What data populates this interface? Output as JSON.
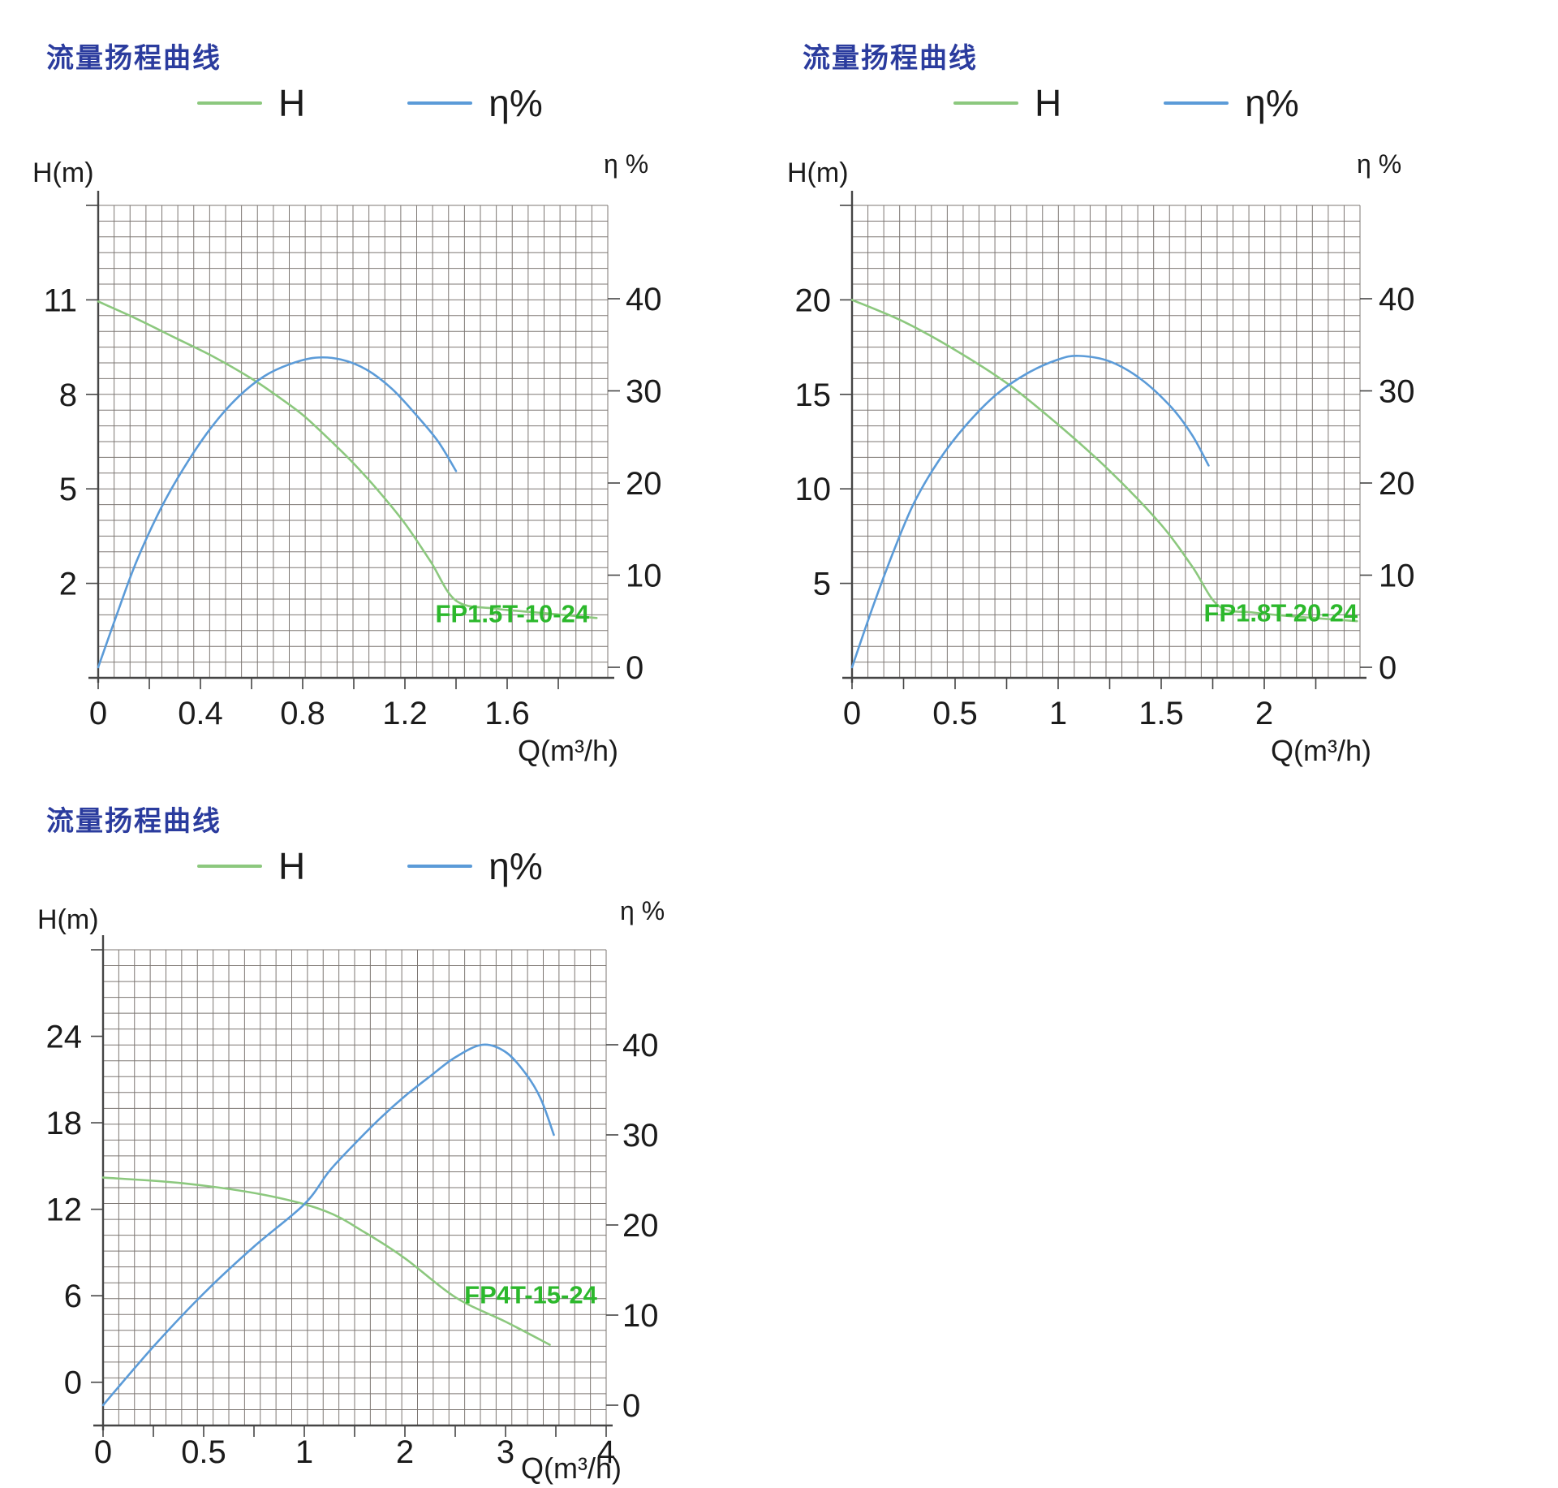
{
  "colors": {
    "title": "#2B3C9E",
    "grid": "#6F6964",
    "axis": "#454545",
    "text": "#1B1B1B",
    "h_curve": "#8CC87E",
    "eta_curve": "#5B9BD8",
    "model_label": "#2CB82C"
  },
  "charts": [
    {
      "title": "流量扬程曲线",
      "legend": {
        "h_label": "H",
        "eta_label": "η%"
      },
      "axes": {
        "left_title": "H(m)",
        "right_title": "η %",
        "x_title": "Q(m³/h)"
      },
      "model": "FP1.5T-10-24",
      "chart_data": {
        "type": "line",
        "title": "流量扬程曲线",
        "grid": "on",
        "legend_position": "top",
        "x_axis": {
          "label": "Q(m³/h)",
          "ticks": [
            0,
            0.4,
            0.8,
            1.2,
            1.6
          ],
          "tick_labels": [
            "0",
            "0.4",
            "0.8",
            "1.2",
            "1.6"
          ],
          "range": [
            0,
            2.0
          ],
          "scale": "linear"
        },
        "y_left": {
          "label": "H(m)",
          "ticks": [
            11,
            8,
            5,
            2
          ],
          "range_at_grid": [
            -1,
            14
          ]
        },
        "y_right": {
          "label": "η %",
          "ticks": [
            40,
            30,
            20,
            10,
            0
          ],
          "range_at_grid": [
            0,
            50
          ]
        },
        "series": [
          {
            "name": "H",
            "axis": "left",
            "color": "#8CC87E",
            "points": [
              [
                0,
                10.95
              ],
              [
                0.15,
                10.4
              ],
              [
                0.3,
                9.8
              ],
              [
                0.45,
                9.2
              ],
              [
                0.6,
                8.5
              ],
              [
                0.7,
                7.95
              ],
              [
                0.8,
                7.35
              ],
              [
                0.9,
                6.6
              ],
              [
                1.0,
                5.8
              ],
              [
                1.1,
                4.9
              ],
              [
                1.2,
                3.9
              ],
              [
                1.3,
                2.7
              ],
              [
                1.4,
                1.45
              ],
              [
                1.55,
                1.2
              ],
              [
                1.75,
                1.05
              ],
              [
                1.95,
                0.9
              ]
            ]
          },
          {
            "name": "η%",
            "axis": "right",
            "color": "#5B9BD8",
            "points": [
              [
                0,
                0
              ],
              [
                0.07,
                5.5
              ],
              [
                0.15,
                11.5
              ],
              [
                0.25,
                17.5
              ],
              [
                0.35,
                22.3
              ],
              [
                0.45,
                26.3
              ],
              [
                0.55,
                29.4
              ],
              [
                0.65,
                31.6
              ],
              [
                0.75,
                32.9
              ],
              [
                0.85,
                33.6
              ],
              [
                0.95,
                33.4
              ],
              [
                1.05,
                32.3
              ],
              [
                1.15,
                30.2
              ],
              [
                1.25,
                27.2
              ],
              [
                1.33,
                24.5
              ],
              [
                1.4,
                21.3
              ]
            ]
          }
        ],
        "annotation": {
          "text": "FP1.5T-10-24",
          "color": "#2CB82C",
          "x": 1.62,
          "h": 1.05
        }
      }
    },
    {
      "title": "流量扬程曲线",
      "legend": {
        "h_label": "H",
        "eta_label": "η%"
      },
      "axes": {
        "left_title": "H(m)",
        "right_title": "η %",
        "x_title": "Q(m³/h)"
      },
      "model": "FP1.8T-20-24",
      "chart_data": {
        "type": "line",
        "title": "流量扬程曲线",
        "grid": "on",
        "legend_position": "top",
        "x_axis": {
          "label": "Q(m³/h)",
          "ticks": [
            0,
            0.5,
            1,
            1.5,
            2
          ],
          "tick_labels": [
            "0",
            "0.5",
            "1",
            "1.5",
            "2"
          ],
          "range": [
            0,
            2.46
          ],
          "scale": "linear"
        },
        "y_left": {
          "label": "H(m)",
          "ticks": [
            20,
            15,
            10,
            5
          ],
          "range_at_grid": [
            0,
            25
          ]
        },
        "y_right": {
          "label": "η %",
          "ticks": [
            40,
            30,
            20,
            10,
            0
          ],
          "range_at_grid": [
            0,
            50
          ]
        },
        "series": [
          {
            "name": "H",
            "axis": "left",
            "color": "#8CC87E",
            "points": [
              [
                0,
                20
              ],
              [
                0.25,
                18.85
              ],
              [
                0.5,
                17.35
              ],
              [
                0.75,
                15.6
              ],
              [
                1.0,
                13.4
              ],
              [
                1.25,
                10.95
              ],
              [
                1.5,
                8.1
              ],
              [
                1.65,
                5.9
              ],
              [
                1.78,
                3.8
              ],
              [
                1.95,
                3.45
              ],
              [
                2.2,
                3.2
              ],
              [
                2.45,
                3.0
              ]
            ]
          },
          {
            "name": "η%",
            "axis": "right",
            "color": "#5B9BD8",
            "points": [
              [
                0,
                0
              ],
              [
                0.1,
                6.5
              ],
              [
                0.2,
                12.5
              ],
              [
                0.3,
                17.8
              ],
              [
                0.42,
                22.4
              ],
              [
                0.55,
                26.2
              ],
              [
                0.7,
                29.6
              ],
              [
                0.85,
                31.9
              ],
              [
                1.0,
                33.4
              ],
              [
                1.1,
                33.8
              ],
              [
                1.25,
                33.2
              ],
              [
                1.4,
                31.3
              ],
              [
                1.55,
                28.2
              ],
              [
                1.65,
                25.2
              ],
              [
                1.73,
                21.9
              ]
            ]
          }
        ],
        "annotation": {
          "text": "FP1.8T-20-24",
          "color": "#2CB82C",
          "x": 2.08,
          "h": 3.45
        }
      }
    },
    {
      "title": "流量扬程曲线",
      "legend": {
        "h_label": "H",
        "eta_label": "η%"
      },
      "axes": {
        "left_title": "H(m)",
        "right_title": "η %",
        "x_title": "Q(m³/h)"
      },
      "model": "FP4T-15-24",
      "chart_data": {
        "type": "line",
        "title": "流量扬程曲线",
        "grid": "on",
        "legend_position": "top",
        "x_axis": {
          "label": "Q(m³/h)",
          "ticks": [
            0,
            0.5,
            1,
            2,
            3,
            4
          ],
          "tick_labels": [
            "0",
            "0.5",
            "1",
            "2",
            "3",
            "4"
          ],
          "range": [
            0,
            4
          ],
          "scale": "segmented-equal-tick-spacing"
        },
        "y_left": {
          "label": "H(m)",
          "ticks": [
            24,
            18,
            12,
            6,
            0
          ],
          "range_at_grid": [
            -3,
            30
          ]
        },
        "y_right": {
          "label": "η %",
          "ticks": [
            40,
            30,
            20,
            10,
            0
          ],
          "range_at_grid": [
            0,
            50.5
          ]
        },
        "series": [
          {
            "name": "H",
            "axis": "left",
            "color": "#8CC87E",
            "points": [
              [
                0,
                14.2
              ],
              [
                0.4,
                13.8
              ],
              [
                0.8,
                13.0
              ],
              [
                1.2,
                11.9
              ],
              [
                1.6,
                10.4
              ],
              [
                2.0,
                8.6
              ],
              [
                2.5,
                5.9
              ],
              [
                3.0,
                4.2
              ],
              [
                3.44,
                2.6
              ]
            ]
          },
          {
            "name": "η%",
            "axis": "right",
            "color": "#5B9BD8",
            "points": [
              [
                0,
                0
              ],
              [
                0.25,
                6.5
              ],
              [
                0.5,
                12.4
              ],
              [
                0.75,
                17.6
              ],
              [
                1.0,
                22.3
              ],
              [
                1.25,
                26.0
              ],
              [
                1.5,
                29.0
              ],
              [
                1.75,
                31.8
              ],
              [
                2.0,
                34.3
              ],
              [
                2.25,
                36.5
              ],
              [
                2.5,
                38.6
              ],
              [
                2.77,
                40.0
              ],
              [
                3.0,
                39.2
              ],
              [
                3.2,
                36.8
              ],
              [
                3.35,
                34.0
              ],
              [
                3.48,
                30.0
              ]
            ]
          }
        ],
        "annotation": {
          "text": "FP4T-15-24",
          "color": "#2CB82C",
          "x": 3.25,
          "h": 6.1
        }
      }
    }
  ]
}
